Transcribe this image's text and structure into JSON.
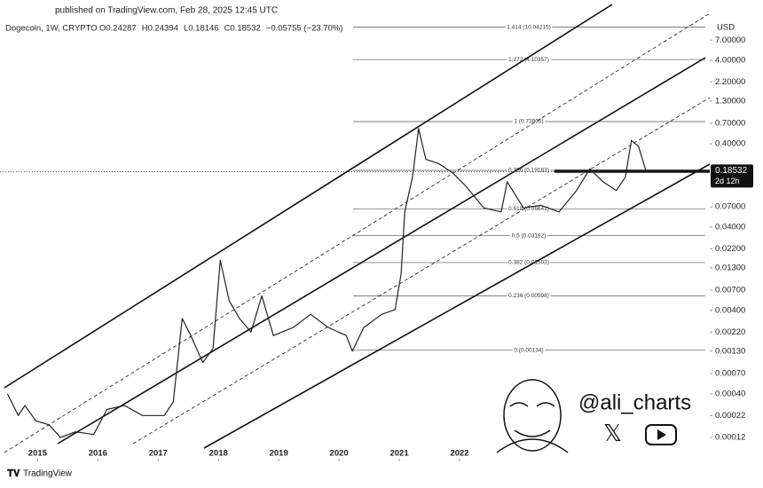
{
  "header": "published on TradingView.com, Feb 28, 2025 12:45 UTC",
  "brand": "TradingView",
  "watermark": "@ali_charts",
  "chart_data": {
    "type": "line",
    "title": "Dogecoin, 1W, CRYPTO",
    "quote": [
      "O0.24287",
      "H0.24394",
      "L0.18146",
      "C0.18532",
      "−0.05755 (−23.70%)"
    ],
    "currency": "USD",
    "last_price": 0.18532,
    "countdown": "2d 12h",
    "log_scale": true,
    "color": "#222222",
    "x": [
      2014.5,
      2014.68,
      2014.79,
      2014.97,
      2015.19,
      2015.38,
      2015.63,
      2015.93,
      2016.15,
      2016.44,
      2016.74,
      2017.1,
      2017.25,
      2017.4,
      2017.54,
      2017.74,
      2017.91,
      2018.03,
      2018.18,
      2018.35,
      2018.54,
      2018.72,
      2018.91,
      2019.24,
      2019.53,
      2019.82,
      2020.12,
      2020.22,
      2020.41,
      2020.71,
      2020.93,
      2021.03,
      2021.09,
      2021.22,
      2021.32,
      2021.44,
      2021.66,
      2021.88,
      2022.1,
      2022.4,
      2022.69,
      2022.79,
      2023.06,
      2023.35,
      2023.65,
      2023.94,
      2024.16,
      2024.38,
      2024.6,
      2024.75,
      2024.85,
      2024.97,
      2025.09
    ],
    "values": [
      0.0004,
      0.00022,
      0.00029,
      0.00019,
      0.00017,
      0.00012,
      0.00014,
      0.00013,
      0.00026,
      0.00029,
      0.00022,
      0.00022,
      0.00032,
      0.0032,
      0.002,
      0.00095,
      0.0014,
      0.016,
      0.0052,
      0.0032,
      0.0022,
      0.006,
      0.002,
      0.0025,
      0.0036,
      0.0025,
      0.002,
      0.0013,
      0.0025,
      0.0036,
      0.0041,
      0.011,
      0.061,
      0.16,
      0.61,
      0.26,
      0.23,
      0.18,
      0.125,
      0.068,
      0.061,
      0.14,
      0.068,
      0.073,
      0.061,
      0.11,
      0.2,
      0.14,
      0.11,
      0.16,
      0.44,
      0.37,
      0.19
    ],
    "xlim": [
      2014.45,
      2026.15
    ],
    "xticks": [
      2015,
      2016,
      2017,
      2018,
      2019,
      2020,
      2021,
      2022
    ],
    "ylim": [
      7e-05,
      13
    ],
    "yticks": [
      {
        "value": 7,
        "label": "7.00000"
      },
      {
        "value": 4,
        "label": "4.00000"
      },
      {
        "value": 2.2,
        "label": "2.20000"
      },
      {
        "value": 1.3,
        "label": "1.30000"
      },
      {
        "value": 0.7,
        "label": "0.70000"
      },
      {
        "value": 0.4,
        "label": "0.40000"
      },
      {
        "value": 0.07,
        "label": "0.07000"
      },
      {
        "value": 0.04,
        "label": "0.04000"
      },
      {
        "value": 0.022,
        "label": "0.02200"
      },
      {
        "value": 0.013,
        "label": "0.01300"
      },
      {
        "value": 0.007,
        "label": "0.00700"
      },
      {
        "value": 0.004,
        "label": "0.00400"
      },
      {
        "value": 0.0022,
        "label": "0.00220"
      },
      {
        "value": 0.0013,
        "label": "0.00130"
      },
      {
        "value": 0.0007,
        "label": "0.00070"
      },
      {
        "value": 0.0004,
        "label": "0.00040"
      },
      {
        "value": 0.00022,
        "label": "0.00022"
      },
      {
        "value": 0.00012,
        "label": "0.00012"
      }
    ],
    "fib_levels": [
      {
        "value": 10.04215,
        "label": "1.414 (10.04215)"
      },
      {
        "value": 4.10357,
        "label": "1.272 (4.10357)"
      },
      {
        "value": 0.73905,
        "label": "1 (0.73905)"
      },
      {
        "value": 0.19183,
        "label": "0.786 (0.19183)"
      },
      {
        "value": 0.06641,
        "label": "0.618 (0.06641)"
      },
      {
        "value": 0.03162,
        "label": "0.5 (0.03162)"
      },
      {
        "value": 0.01503,
        "label": "0.382 (0.01503)"
      },
      {
        "value": 0.00598,
        "label": "0.236 (0.00598)"
      },
      {
        "value": 0.00134,
        "label": "0 (0.00134)"
      }
    ]
  }
}
